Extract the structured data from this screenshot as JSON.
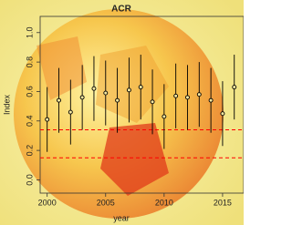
{
  "chart_data": {
    "type": "errorbar",
    "title": "ACR",
    "x_label": "year",
    "y_label": "Index",
    "x": [
      2000,
      2001,
      2002,
      2003,
      2004,
      2005,
      2006,
      2007,
      2008,
      2009,
      2010,
      2011,
      2012,
      2013,
      2014,
      2015,
      2016
    ],
    "series": [
      {
        "name": "ACR",
        "color": "#000000",
        "values": [
          0.41,
          0.54,
          0.46,
          0.56,
          0.62,
          0.59,
          0.54,
          0.61,
          0.63,
          0.53,
          0.43,
          0.57,
          0.56,
          0.58,
          0.54,
          0.45,
          0.63
        ],
        "errors": [
          0.22,
          0.22,
          0.22,
          0.22,
          0.22,
          0.22,
          0.22,
          0.22,
          0.22,
          0.22,
          0.22,
          0.22,
          0.22,
          0.22,
          0.22,
          0.22,
          0.22
        ]
      }
    ],
    "hlines": [
      0.34,
      0.15
    ],
    "hline_color": "#ff0000",
    "xlim": [
      1999.4,
      2016.8
    ],
    "ylim": [
      -0.09,
      1.11
    ],
    "xticks": [
      2000,
      2005,
      2010,
      2015
    ],
    "yticks": [
      {
        "value": 0,
        "label": "0.0"
      },
      {
        "value": 0.2,
        "label": "0.2"
      },
      {
        "value": 0.4,
        "label": "0.4"
      },
      {
        "value": 0.6,
        "label": "0.6"
      },
      {
        "value": 0.8,
        "label": "0.8"
      },
      {
        "value": 1,
        "label": "1.0"
      }
    ]
  }
}
